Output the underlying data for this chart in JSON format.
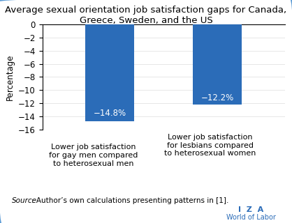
{
  "title": "Average sexual orientation job satisfaction gaps for Canada,\nGreece, Sweden, and the US",
  "values": [
    -14.8,
    -12.2
  ],
  "bar_labels": [
    "−14.8%",
    "−12.2%"
  ],
  "bar_color": "#2B6CB8",
  "ylabel": "Percentage",
  "ylim": [
    -16,
    0
  ],
  "yticks": [
    0,
    -2,
    -4,
    -6,
    -8,
    -10,
    -12,
    -14,
    -16
  ],
  "ytick_labels": [
    "0",
    "−2",
    "−4",
    "−6",
    "−8",
    "−10",
    "−12",
    "−14",
    "−16"
  ],
  "annotation1": "Lower job satisfaction\nfor gay men compared\nto heterosexual men",
  "annotation2": "Lower job satisfaction\nfor lesbians compared\nto heterosexual women",
  "source_italic": "Source",
  "source_rest": ": Author’s own calculations presenting patterns in [1].",
  "iza_text": "I  Z  A",
  "wol_text": "World of Labor",
  "background_color": "#FFFFFF",
  "border_color": "#5B9BD5",
  "title_fontsize": 9.5,
  "axis_label_fontsize": 8.5,
  "tick_fontsize": 8.5,
  "annotation_fontsize": 8,
  "source_fontsize": 7.5,
  "bar_label_fontsize": 8.5
}
